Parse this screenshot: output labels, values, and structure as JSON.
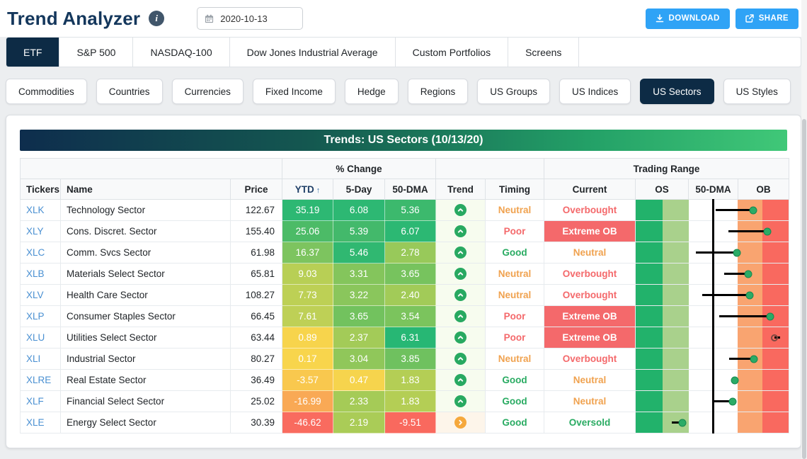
{
  "header": {
    "title": "Trend Analyzer",
    "date_value": "2020-10-13",
    "download_label": "DOWNLOAD",
    "share_label": "SHARE"
  },
  "universe_tabs": {
    "items": [
      {
        "label": "ETF",
        "active": true
      },
      {
        "label": "S&P 500",
        "active": false
      },
      {
        "label": "NASDAQ-100",
        "active": false
      },
      {
        "label": "Dow Jones Industrial Average",
        "active": false
      },
      {
        "label": "Custom Portfolios",
        "active": false
      },
      {
        "label": "Screens",
        "active": false
      }
    ]
  },
  "category_tabs": {
    "items": [
      {
        "label": "Commodities",
        "active": false
      },
      {
        "label": "Countries",
        "active": false
      },
      {
        "label": "Currencies",
        "active": false
      },
      {
        "label": "Fixed Income",
        "active": false
      },
      {
        "label": "Hedge",
        "active": false
      },
      {
        "label": "Regions",
        "active": false
      },
      {
        "label": "US Groups",
        "active": false
      },
      {
        "label": "US Indices",
        "active": false
      },
      {
        "label": "US Sectors",
        "active": true
      },
      {
        "label": "US Styles",
        "active": false
      }
    ]
  },
  "table": {
    "title": "Trends: US Sectors (10/13/20)",
    "group_headers": {
      "pct_change": "% Change",
      "trading_range": "Trading Range"
    },
    "columns": {
      "tickers": "Tickers",
      "name": "Name",
      "price": "Price",
      "ytd": "YTD",
      "sort_arrow": "↑",
      "five_day": "5-Day",
      "dma": "50-DMA",
      "trend": "Trend",
      "timing": "Timing",
      "current": "Current",
      "os": "OS",
      "range_dma": "50-DMA",
      "ob": "OB"
    },
    "dma_line_pct": 50.7,
    "range_bands": [
      {
        "name": "extreme-oversold-zone",
        "color": "#22b26b",
        "width_pct": 17.5
      },
      {
        "name": "oversold-zone",
        "color": "#a9d18c",
        "width_pct": 17.0
      },
      {
        "name": "neutral-zone",
        "color": "#ffffff",
        "width_pct": 32.3
      },
      {
        "name": "overbought-zone",
        "color": "#f9a470",
        "width_pct": 16.1
      },
      {
        "name": "extreme-overbought-zone",
        "color": "#f9695f",
        "width_pct": 17.1
      }
    ],
    "colors": {
      "trend": {
        "up": "#28a961",
        "right": "#f5a83c"
      },
      "trend_cell_bg": {
        "up": "#f7fcef",
        "right": "#fdf5ea"
      },
      "timing": {
        "Neutral": "#f0a24f",
        "Poor": "#f4696b",
        "Good": "#29ab62"
      },
      "current_text": {
        "Overbought": "#f4696b",
        "Neutral": "#f0a24f",
        "Oversold": "#29ab62"
      },
      "current_fill": {
        "Extreme OB": "#f4696b"
      }
    },
    "rows": [
      {
        "ticker": "XLK",
        "name": "Technology Sector",
        "price": "122.67",
        "ytd": "35.19",
        "ytd_color": "#2db873",
        "five_day": "6.08",
        "five_day_color": "#2db873",
        "dma": "5.36",
        "dma_color": "#3cb96d",
        "trend": "up",
        "timing": "Neutral",
        "current": "Overbought",
        "range": {
          "marker_pct": 76.6,
          "tail_from_pct": 52.1,
          "marker": "solid"
        }
      },
      {
        "ticker": "XLY",
        "name": "Cons. Discret. Sector",
        "price": "155.40",
        "ytd": "25.06",
        "ytd_color": "#4cbb67",
        "five_day": "5.39",
        "five_day_color": "#43b96b",
        "dma": "6.07",
        "dma_color": "#2cb873",
        "trend": "up",
        "timing": "Poor",
        "current": "Extreme OB",
        "range": {
          "marker_pct": 86.3,
          "tail_from_pct": 60.5,
          "marker": "solid"
        }
      },
      {
        "ticker": "XLC",
        "name": "Comm. Svcs Sector",
        "price": "61.98",
        "ytd": "16.37",
        "ytd_color": "#7dc45f",
        "five_day": "5.46",
        "five_day_color": "#30b871",
        "dma": "2.78",
        "dma_color": "#98c95a",
        "trend": "up",
        "timing": "Good",
        "current": "Neutral",
        "range": {
          "marker_pct": 66.2,
          "tail_from_pct": 39.5,
          "marker": "solid"
        }
      },
      {
        "ticker": "XLB",
        "name": "Materials Select Sector",
        "price": "65.81",
        "ytd": "9.03",
        "ytd_color": "#b8cf55",
        "five_day": "3.31",
        "five_day_color": "#84c55c",
        "dma": "3.65",
        "dma_color": "#77c35e",
        "trend": "up",
        "timing": "Neutral",
        "current": "Overbought",
        "range": {
          "marker_pct": 73.6,
          "tail_from_pct": 57.9,
          "marker": "solid"
        }
      },
      {
        "ticker": "XLV",
        "name": "Health Care Sector",
        "price": "108.27",
        "ytd": "7.73",
        "ytd_color": "#bdd055",
        "five_day": "3.22",
        "five_day_color": "#8ac65c",
        "dma": "2.40",
        "dma_color": "#a2cb58",
        "trend": "up",
        "timing": "Neutral",
        "current": "Overbought",
        "range": {
          "marker_pct": 74.7,
          "tail_from_pct": 43.3,
          "marker": "solid"
        }
      },
      {
        "ticker": "XLP",
        "name": "Consumer Staples Sector",
        "price": "66.45",
        "ytd": "7.61",
        "ytd_color": "#bed056",
        "five_day": "3.65",
        "five_day_color": "#72c25e",
        "dma": "3.54",
        "dma_color": "#7bc45d",
        "trend": "up",
        "timing": "Poor",
        "current": "Extreme OB",
        "range": {
          "marker_pct": 87.9,
          "tail_from_pct": 54.7,
          "marker": "solid"
        }
      },
      {
        "ticker": "XLU",
        "name": "Utilities Select Sector",
        "price": "63.44",
        "ytd": "0.89",
        "ytd_color": "#f7d44c",
        "five_day": "2.37",
        "five_day_color": "#a3cb58",
        "dma": "6.31",
        "dma_color": "#27b774",
        "trend": "up",
        "timing": "Poor",
        "current": "Extreme OB",
        "range": {
          "marker_pct": 90.5,
          "tail_from_pct": 94.3,
          "marker": "hollow"
        }
      },
      {
        "ticker": "XLI",
        "name": "Industrial Sector",
        "price": "80.27",
        "ytd": "0.17",
        "ytd_color": "#f8d54c",
        "five_day": "3.04",
        "five_day_color": "#90c75a",
        "dma": "3.85",
        "dma_color": "#6fc15f",
        "trend": "up",
        "timing": "Neutral",
        "current": "Overbought",
        "range": {
          "marker_pct": 77.1,
          "tail_from_pct": 61.3,
          "marker": "solid"
        }
      },
      {
        "ticker": "XLRE",
        "name": "Real Estate Sector",
        "price": "36.49",
        "ytd": "-3.57",
        "ytd_color": "#f9c84e",
        "five_day": "0.47",
        "five_day_color": "#f6d44d",
        "dma": "1.83",
        "dma_color": "#b4ce55",
        "trend": "up",
        "timing": "Good",
        "current": "Neutral",
        "range": {
          "marker_pct": 64.8,
          "tail_from_pct": 64.8,
          "marker": "solid"
        }
      },
      {
        "ticker": "XLF",
        "name": "Financial Select Sector",
        "price": "25.02",
        "ytd": "-16.99",
        "ytd_color": "#f9a955",
        "five_day": "2.33",
        "five_day_color": "#a5cb57",
        "dma": "1.83",
        "dma_color": "#b4ce55",
        "trend": "up",
        "timing": "Good",
        "current": "Neutral",
        "range": {
          "marker_pct": 63.6,
          "tail_from_pct": 50.6,
          "marker": "solid"
        }
      },
      {
        "ticker": "XLE",
        "name": "Energy Select Sector",
        "price": "30.39",
        "ytd": "-46.62",
        "ytd_color": "#f96b5f",
        "five_day": "2.19",
        "five_day_color": "#aacc57",
        "dma": "-9.51",
        "dma_color": "#f9695e",
        "trend": "right",
        "timing": "Good",
        "current": "Oversold",
        "range": {
          "marker_pct": 30.6,
          "tail_from_pct": 23.6,
          "marker": "solid"
        }
      }
    ]
  }
}
